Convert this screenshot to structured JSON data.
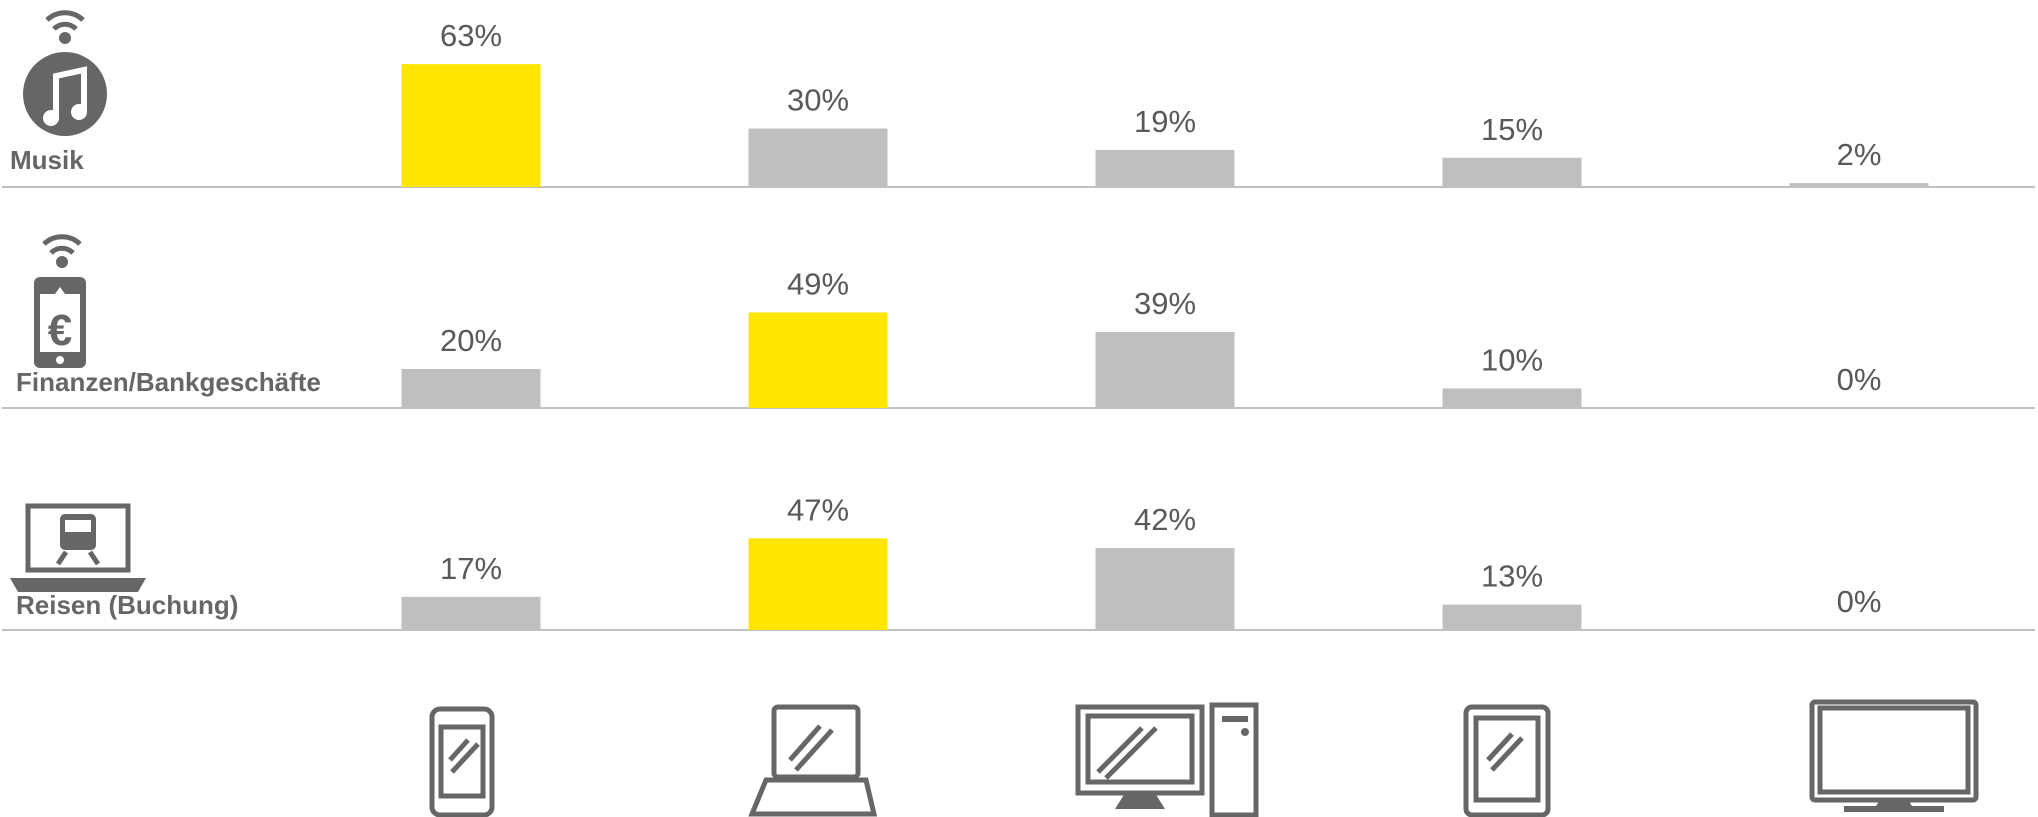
{
  "charts": [
    {
      "type": "bar",
      "title": "Musik",
      "categories": [
        null,
        null,
        null,
        null,
        null
      ],
      "values": [
        63,
        30,
        19,
        15,
        2
      ],
      "value_labels": [
        "63%",
        "30%",
        "19%",
        "15%",
        "2%"
      ],
      "colors": [
        "#ffe500",
        "#bfbfbf",
        "#bfbfbf",
        "#bfbfbf",
        "#bfbfbf"
      ],
      "ylim": [
        0,
        100
      ]
    },
    {
      "type": "bar",
      "title": "Finanzen/Bankgeschäfte",
      "categories": [
        null,
        null,
        null,
        null,
        null
      ],
      "values": [
        20,
        49,
        39,
        10,
        0
      ],
      "value_labels": [
        "20%",
        "49%",
        "39%",
        "10%",
        "0%"
      ],
      "colors": [
        "#bfbfbf",
        "#ffe500",
        "#bfbfbf",
        "#bfbfbf",
        "#bfbfbf"
      ],
      "ylim": [
        0,
        100
      ]
    },
    {
      "type": "bar",
      "title": "Reisen (Buchung)",
      "categories": [
        null,
        null,
        null,
        null,
        null
      ],
      "values": [
        17,
        47,
        42,
        13,
        0
      ],
      "value_labels": [
        "17%",
        "47%",
        "42%",
        "13%",
        "0%"
      ],
      "colors": [
        "#bfbfbf",
        "#ffe500",
        "#bfbfbf",
        "#bfbfbf",
        "#bfbfbf"
      ],
      "ylim": [
        0,
        100
      ]
    }
  ]
}
